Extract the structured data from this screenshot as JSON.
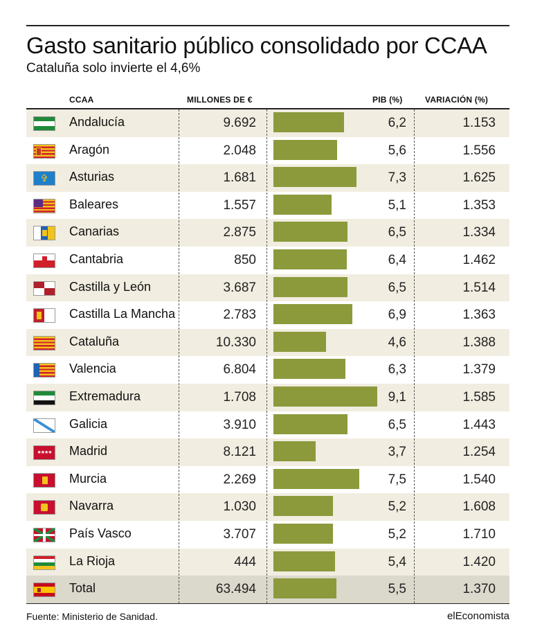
{
  "title": "Gasto sanitario público consolidado por CCAA",
  "subtitle": "Cataluña solo invierte el 4,6%",
  "headers": {
    "ccaa": "CCAA",
    "millones": "MILLONES DE €",
    "pib": "PIB (%)",
    "variacion": "VARIACIÓN (%)"
  },
  "source": "Fuente: Ministerio de Sanidad.",
  "brand": "elEconomista",
  "bar_color": "#8c9a3c",
  "chart_data": {
    "type": "table",
    "columns": [
      "CCAA",
      "MILLONES DE €",
      "PIB (%)",
      "VARIACIÓN (%)"
    ],
    "bar_column": "PIB (%)",
    "bar_max": 9.1,
    "rows": [
      {
        "ccaa": "Andalucía",
        "millones": "9.692",
        "pib": "6,2",
        "pib_value": 6.2,
        "variacion": "1.153",
        "flag": "andalucia-flag"
      },
      {
        "ccaa": "Aragón",
        "millones": "2.048",
        "pib": "5,6",
        "pib_value": 5.6,
        "variacion": "1.556",
        "flag": "aragon-flag"
      },
      {
        "ccaa": "Asturias",
        "millones": "1.681",
        "pib": "7,3",
        "pib_value": 7.3,
        "variacion": "1.625",
        "flag": "asturias-flag"
      },
      {
        "ccaa": "Baleares",
        "millones": "1.557",
        "pib": "5,1",
        "pib_value": 5.1,
        "variacion": "1.353",
        "flag": "baleares-flag"
      },
      {
        "ccaa": "Canarias",
        "millones": "2.875",
        "pib": "6,5",
        "pib_value": 6.5,
        "variacion": "1.334",
        "flag": "canarias-flag"
      },
      {
        "ccaa": "Cantabria",
        "millones": "850",
        "pib": "6,4",
        "pib_value": 6.4,
        "variacion": "1.462",
        "flag": "cantabria-flag"
      },
      {
        "ccaa": "Castilla y León",
        "millones": "3.687",
        "pib": "6,5",
        "pib_value": 6.5,
        "variacion": "1.514",
        "flag": "castilla-leon-flag"
      },
      {
        "ccaa": "Castilla La Mancha",
        "millones": "2.783",
        "pib": "6,9",
        "pib_value": 6.9,
        "variacion": "1.363",
        "flag": "castilla-la-mancha-flag"
      },
      {
        "ccaa": "Cataluña",
        "millones": "10.330",
        "pib": "4,6",
        "pib_value": 4.6,
        "variacion": "1.388",
        "flag": "cataluna-flag"
      },
      {
        "ccaa": "Valencia",
        "millones": "6.804",
        "pib": "6,3",
        "pib_value": 6.3,
        "variacion": "1.379",
        "flag": "valencia-flag"
      },
      {
        "ccaa": "Extremadura",
        "millones": "1.708",
        "pib": "9,1",
        "pib_value": 9.1,
        "variacion": "1.585",
        "flag": "extremadura-flag"
      },
      {
        "ccaa": "Galicia",
        "millones": "3.910",
        "pib": "6,5",
        "pib_value": 6.5,
        "variacion": "1.443",
        "flag": "galicia-flag"
      },
      {
        "ccaa": "Madrid",
        "millones": "8.121",
        "pib": "3,7",
        "pib_value": 3.7,
        "variacion": "1.254",
        "flag": "madrid-flag"
      },
      {
        "ccaa": "Murcia",
        "millones": "2.269",
        "pib": "7,5",
        "pib_value": 7.5,
        "variacion": "1.540",
        "flag": "murcia-flag"
      },
      {
        "ccaa": "Navarra",
        "millones": "1.030",
        "pib": "5,2",
        "pib_value": 5.2,
        "variacion": "1.608",
        "flag": "navarra-flag"
      },
      {
        "ccaa": "País Vasco",
        "millones": "3.707",
        "pib": "5,2",
        "pib_value": 5.2,
        "variacion": "1.710",
        "flag": "pais-vasco-flag"
      },
      {
        "ccaa": "La Rioja",
        "millones": "444",
        "pib": "5,4",
        "pib_value": 5.4,
        "variacion": "1.420",
        "flag": "la-rioja-flag"
      },
      {
        "ccaa": "Total",
        "millones": "63.494",
        "pib": "5,5",
        "pib_value": 5.5,
        "variacion": "1.370",
        "flag": "espana-flag"
      }
    ]
  }
}
